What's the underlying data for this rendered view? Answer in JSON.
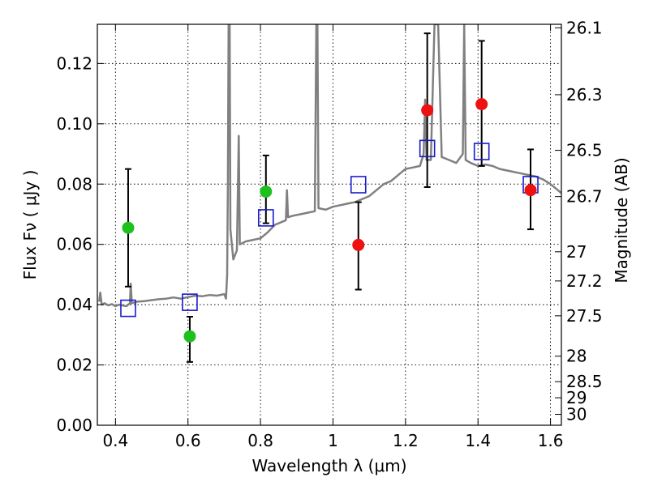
{
  "chart_data": {
    "type": "scatter",
    "xlabel": "Wavelength  λ (μm)",
    "ylabel": "Flux  Fν  ( μJy )",
    "y2label": "Magnitude (AB)",
    "xlim": [
      0.35,
      1.63
    ],
    "ylim": [
      0.0,
      0.133
    ],
    "grid": true,
    "x_ticks": [
      {
        "value": 0.4,
        "label": "0.4"
      },
      {
        "value": 0.6,
        "label": "0.6"
      },
      {
        "value": 0.8,
        "label": "0.8"
      },
      {
        "value": 1.0,
        "label": "1"
      },
      {
        "value": 1.2,
        "label": "1.2"
      },
      {
        "value": 1.4,
        "label": "1.4"
      },
      {
        "value": 1.6,
        "label": "1.6"
      }
    ],
    "y_ticks": [
      {
        "value": 0.0,
        "label": "0.00"
      },
      {
        "value": 0.02,
        "label": "0.02"
      },
      {
        "value": 0.04,
        "label": "0.04"
      },
      {
        "value": 0.06,
        "label": "0.06"
      },
      {
        "value": 0.08,
        "label": "0.08"
      },
      {
        "value": 0.1,
        "label": "0.10"
      },
      {
        "value": 0.12,
        "label": "0.12"
      }
    ],
    "mag_ticks": [
      "26.1",
      "26.3",
      "26.5",
      "26.7",
      "27",
      "27.2",
      "27.5",
      "28",
      "28.5",
      "29",
      "30"
    ],
    "colors": {
      "green": "#1ec01e",
      "red": "#ee1111",
      "square": "#1a1acc",
      "spectrum": "#808080",
      "errorbar": "#000000"
    },
    "series": [
      {
        "marker": "circle",
        "color": "green",
        "points": [
          {
            "x": 0.435,
            "y": 0.0655,
            "err_low": 0.046,
            "err_high": 0.085
          },
          {
            "x": 0.605,
            "y": 0.0295,
            "err_low": 0.021,
            "err_high": 0.036
          },
          {
            "x": 0.815,
            "y": 0.0775,
            "err_low": 0.067,
            "err_high": 0.0895
          }
        ]
      },
      {
        "marker": "circle",
        "color": "red",
        "points": [
          {
            "x": 1.07,
            "y": 0.0598,
            "err_low": 0.045,
            "err_high": 0.074
          },
          {
            "x": 1.26,
            "y": 0.1045,
            "err_low": 0.079,
            "err_high": 0.13
          },
          {
            "x": 1.41,
            "y": 0.1065,
            "err_low": 0.086,
            "err_high": 0.1275
          },
          {
            "x": 1.545,
            "y": 0.078,
            "err_low": 0.065,
            "err_high": 0.0915
          }
        ]
      },
      {
        "marker": "square",
        "color": "square",
        "points": [
          {
            "x": 0.435,
            "y": 0.0388
          },
          {
            "x": 0.605,
            "y": 0.0408
          },
          {
            "x": 0.815,
            "y": 0.0688
          },
          {
            "x": 1.07,
            "y": 0.0798
          },
          {
            "x": 1.26,
            "y": 0.0918
          },
          {
            "x": 1.41,
            "y": 0.0908
          },
          {
            "x": 1.545,
            "y": 0.0798
          }
        ]
      },
      {
        "marker": "line",
        "color": "spectrum",
        "points": [
          {
            "x": 0.355,
            "y": 0.041
          },
          {
            "x": 0.358,
            "y": 0.044
          },
          {
            "x": 0.362,
            "y": 0.04
          },
          {
            "x": 0.37,
            "y": 0.0405
          },
          {
            "x": 0.38,
            "y": 0.0398
          },
          {
            "x": 0.39,
            "y": 0.0402
          },
          {
            "x": 0.4,
            "y": 0.0395
          },
          {
            "x": 0.41,
            "y": 0.04
          },
          {
            "x": 0.42,
            "y": 0.0397
          },
          {
            "x": 0.43,
            "y": 0.0395
          },
          {
            "x": 0.44,
            "y": 0.0405
          },
          {
            "x": 0.442,
            "y": 0.047
          },
          {
            "x": 0.445,
            "y": 0.0405
          },
          {
            "x": 0.46,
            "y": 0.041
          },
          {
            "x": 0.48,
            "y": 0.0412
          },
          {
            "x": 0.5,
            "y": 0.0415
          },
          {
            "x": 0.52,
            "y": 0.0418
          },
          {
            "x": 0.54,
            "y": 0.042
          },
          {
            "x": 0.56,
            "y": 0.0424
          },
          {
            "x": 0.58,
            "y": 0.042
          },
          {
            "x": 0.6,
            "y": 0.0425
          },
          {
            "x": 0.62,
            "y": 0.043
          },
          {
            "x": 0.64,
            "y": 0.0428
          },
          {
            "x": 0.66,
            "y": 0.0432
          },
          {
            "x": 0.68,
            "y": 0.043
          },
          {
            "x": 0.7,
            "y": 0.0435
          },
          {
            "x": 0.705,
            "y": 0.042
          },
          {
            "x": 0.708,
            "y": 0.05
          },
          {
            "x": 0.71,
            "y": 0.08
          },
          {
            "x": 0.712,
            "y": 0.133
          },
          {
            "x": 0.715,
            "y": 0.133
          },
          {
            "x": 0.717,
            "y": 0.065
          },
          {
            "x": 0.725,
            "y": 0.055
          },
          {
            "x": 0.735,
            "y": 0.058
          },
          {
            "x": 0.74,
            "y": 0.096
          },
          {
            "x": 0.743,
            "y": 0.06
          },
          {
            "x": 0.76,
            "y": 0.061
          },
          {
            "x": 0.78,
            "y": 0.0615
          },
          {
            "x": 0.8,
            "y": 0.062
          },
          {
            "x": 0.82,
            "y": 0.064
          },
          {
            "x": 0.84,
            "y": 0.0665
          },
          {
            "x": 0.86,
            "y": 0.0675
          },
          {
            "x": 0.87,
            "y": 0.068
          },
          {
            "x": 0.873,
            "y": 0.078
          },
          {
            "x": 0.876,
            "y": 0.069
          },
          {
            "x": 0.89,
            "y": 0.0695
          },
          {
            "x": 0.91,
            "y": 0.07
          },
          {
            "x": 0.93,
            "y": 0.0705
          },
          {
            "x": 0.95,
            "y": 0.071
          },
          {
            "x": 0.954,
            "y": 0.133
          },
          {
            "x": 0.957,
            "y": 0.133
          },
          {
            "x": 0.96,
            "y": 0.072
          },
          {
            "x": 0.98,
            "y": 0.0715
          },
          {
            "x": 1.0,
            "y": 0.0725
          },
          {
            "x": 1.02,
            "y": 0.073
          },
          {
            "x": 1.04,
            "y": 0.0735
          },
          {
            "x": 1.06,
            "y": 0.074
          },
          {
            "x": 1.08,
            "y": 0.075
          },
          {
            "x": 1.1,
            "y": 0.076
          },
          {
            "x": 1.12,
            "y": 0.078
          },
          {
            "x": 1.14,
            "y": 0.08
          },
          {
            "x": 1.16,
            "y": 0.081
          },
          {
            "x": 1.18,
            "y": 0.083
          },
          {
            "x": 1.2,
            "y": 0.085
          },
          {
            "x": 1.22,
            "y": 0.0855
          },
          {
            "x": 1.24,
            "y": 0.086
          },
          {
            "x": 1.25,
            "y": 0.09
          },
          {
            "x": 1.254,
            "y": 0.108
          },
          {
            "x": 1.258,
            "y": 0.088
          },
          {
            "x": 1.27,
            "y": 0.088
          },
          {
            "x": 1.28,
            "y": 0.133
          },
          {
            "x": 1.29,
            "y": 0.133
          },
          {
            "x": 1.3,
            "y": 0.089
          },
          {
            "x": 1.32,
            "y": 0.088
          },
          {
            "x": 1.34,
            "y": 0.087
          },
          {
            "x": 1.358,
            "y": 0.09
          },
          {
            "x": 1.362,
            "y": 0.133
          },
          {
            "x": 1.366,
            "y": 0.088
          },
          {
            "x": 1.38,
            "y": 0.087
          },
          {
            "x": 1.4,
            "y": 0.086
          },
          {
            "x": 1.42,
            "y": 0.0865
          },
          {
            "x": 1.44,
            "y": 0.086
          },
          {
            "x": 1.46,
            "y": 0.085
          },
          {
            "x": 1.48,
            "y": 0.0845
          },
          {
            "x": 1.5,
            "y": 0.084
          },
          {
            "x": 1.52,
            "y": 0.0835
          },
          {
            "x": 1.54,
            "y": 0.083
          },
          {
            "x": 1.56,
            "y": 0.0825
          },
          {
            "x": 1.58,
            "y": 0.0815
          },
          {
            "x": 1.6,
            "y": 0.08
          },
          {
            "x": 1.615,
            "y": 0.0785
          },
          {
            "x": 1.63,
            "y": 0.077
          }
        ]
      }
    ]
  }
}
